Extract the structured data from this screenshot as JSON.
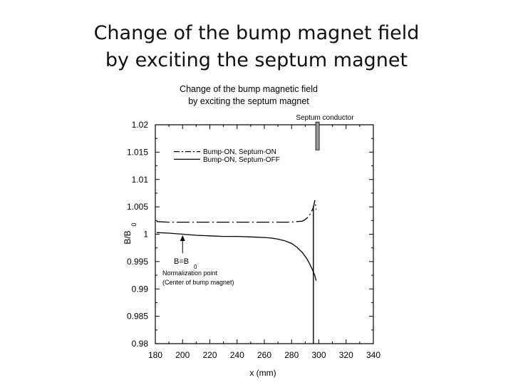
{
  "slide": {
    "title_line1": "Change of the bump magnet field",
    "title_line2": "by exciting the septum magnet"
  },
  "chart_data": {
    "type": "line",
    "title_line1": "Change of the bump magnetic field",
    "title_line2": "by exciting the septum magnet",
    "xlabel": "x (mm)",
    "ylabel_main": "B/B",
    "ylabel_sub": "0",
    "xlim": [
      180,
      340
    ],
    "ylim": [
      0.98,
      1.02
    ],
    "x_ticks": [
      "180",
      "200",
      "220",
      "240",
      "260",
      "280",
      "300",
      "320",
      "340"
    ],
    "y_ticks": [
      "0.98",
      "0.985",
      "0.99",
      "0.995",
      "1",
      "1.005",
      "1.01",
      "1.015",
      "1.02"
    ],
    "legend_position": "top-left",
    "series": [
      {
        "name": "Bump-ON, Septum-ON",
        "style": "dash-dot",
        "x": [
          181,
          190,
          200,
          210,
          220,
          230,
          240,
          250,
          260,
          270,
          280,
          284,
          288,
          290,
          292,
          294,
          296,
          297,
          298
        ],
        "y": [
          1.0023,
          1.0022,
          1.0022,
          1.0022,
          1.0022,
          1.0022,
          1.0022,
          1.0022,
          1.0022,
          1.0022,
          1.0022,
          1.0023,
          1.0024,
          1.0027,
          1.0031,
          1.0038,
          1.0049,
          1.0062,
          1.0045
        ]
      },
      {
        "name": "Bump-ON, Septum-OFF",
        "style": "solid",
        "x": [
          181,
          190,
          200,
          210,
          220,
          230,
          240,
          250,
          260,
          265,
          270,
          275,
          280,
          284,
          288,
          291,
          293,
          295,
          297,
          298
        ],
        "y": [
          1.0003,
          1.0002,
          1.0,
          0.9998,
          0.9997,
          0.9996,
          0.9996,
          0.9995,
          0.9994,
          0.9993,
          0.9991,
          0.9988,
          0.9983,
          0.9976,
          0.9966,
          0.9956,
          0.9947,
          0.9937,
          0.9925,
          0.9915
        ]
      }
    ],
    "septum": {
      "label": "Septum conductor",
      "x": 299,
      "y_top": 1.0205,
      "y_bottom": 1.0154,
      "x_line": 296
    },
    "annotation": {
      "arrow_x": 200,
      "arrow_y_from": 0.9965,
      "arrow_y_to": 0.9998,
      "label_main": "B=B",
      "label_sub": "0",
      "note_line1": "Normalization point",
      "note_line2": "(Center of bump magnet)"
    }
  }
}
